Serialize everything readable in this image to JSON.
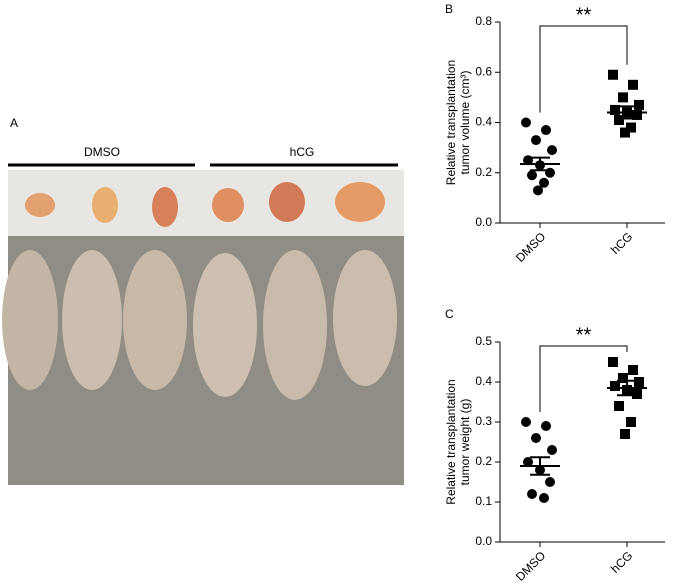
{
  "figure": {
    "panel_a": {
      "label": "A",
      "groups": [
        "DMSO",
        "hCG"
      ]
    }
  },
  "chart_data": [
    {
      "type": "dotplot",
      "panel": "B",
      "ylabel": [
        "Relative transplantation",
        "tumor volume (cm³)"
      ],
      "categories": [
        "DMSO",
        "hCG"
      ],
      "markers": [
        "circle",
        "square"
      ],
      "color": "#000000",
      "points": [
        [
          0.4,
          0.37,
          0.33,
          0.29,
          0.25,
          0.23,
          0.2,
          0.19,
          0.16,
          0.13
        ],
        [
          0.59,
          0.55,
          0.5,
          0.47,
          0.45,
          0.44,
          0.43,
          0.41,
          0.38,
          0.36
        ]
      ],
      "mean": [
        0.235,
        0.44
      ],
      "sem": [
        0.025,
        0.024
      ],
      "ylim": [
        0,
        0.8
      ],
      "yticks": [
        {
          "value": 0,
          "label": "0.0"
        },
        0.2,
        0.4,
        0.6,
        0.8
      ],
      "significance": "**"
    },
    {
      "type": "dotplot",
      "panel": "C",
      "ylabel": [
        "Relative transplantation",
        "tumor weight (g)"
      ],
      "categories": [
        "DMSO",
        "hCG"
      ],
      "markers": [
        "circle",
        "square"
      ],
      "color": "#000000",
      "points": [
        [
          0.3,
          0.29,
          0.26,
          0.23,
          0.2,
          0.18,
          0.15,
          0.12,
          0.11
        ],
        [
          0.45,
          0.43,
          0.41,
          0.4,
          0.39,
          0.38,
          0.37,
          0.34,
          0.3,
          0.27
        ]
      ],
      "mean": [
        0.19,
        0.385
      ],
      "sem": [
        0.022,
        0.018
      ],
      "ylim": [
        0,
        0.5
      ],
      "yticks": [
        {
          "value": 0,
          "label": "0.0"
        },
        0.1,
        0.2,
        0.3,
        0.4,
        0.5
      ],
      "significance": "**"
    }
  ]
}
